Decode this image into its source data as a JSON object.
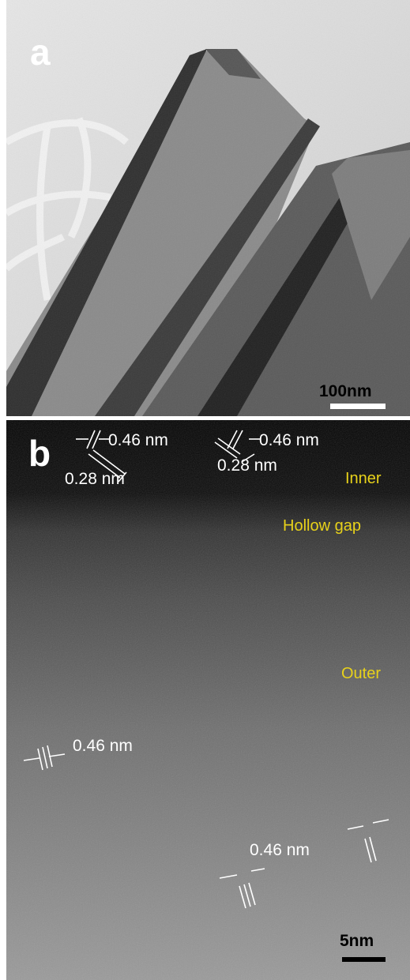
{
  "panels": [
    {
      "label": "a",
      "scale_bar": "100nm"
    },
    {
      "label": "b",
      "scale_bar": "5nm",
      "regions": [
        "Inner",
        "Hollow gap",
        "Outer"
      ],
      "spacings": [
        "0.46 nm",
        "0.28 nm",
        "0.46 nm",
        "0.28 nm",
        "0.46 nm",
        "0.46 nm"
      ]
    }
  ]
}
